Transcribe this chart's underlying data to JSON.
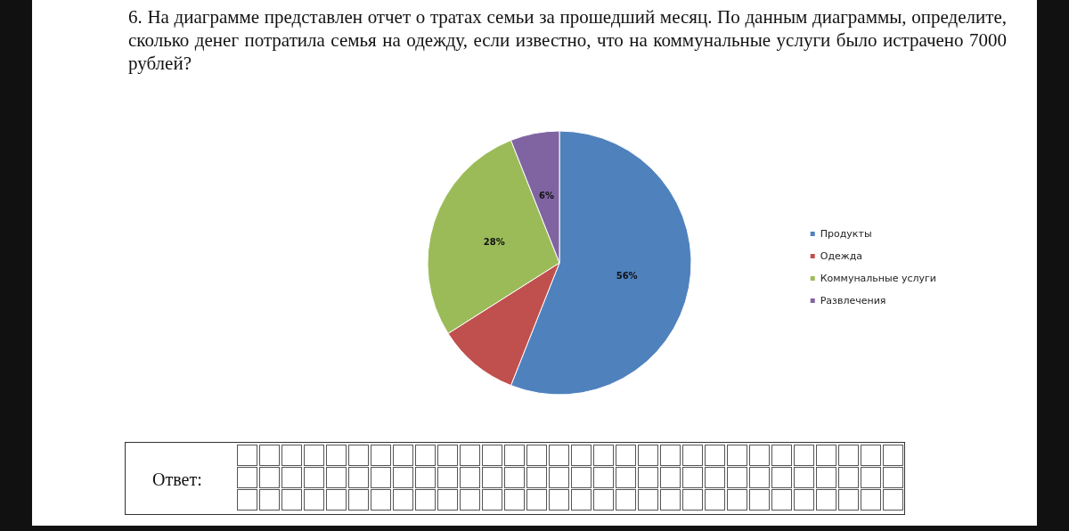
{
  "chart_data": {
    "type": "pie",
    "title": "6. На диаграмме представлен отчет о тратах семьи за прошедший месяц. По данным диаграммы, определите, сколько денег потратила семья на одежду, если известно, что на коммунальные услуги было истрачено 7000 рублей?",
    "categories": [
      "Продукты",
      "Одежда",
      "Коммунальные услуги",
      "Развлечения"
    ],
    "values": [
      56,
      10,
      28,
      6
    ],
    "colors": [
      "#4f81bd",
      "#c0504d",
      "#9bbb59",
      "#8064a2"
    ],
    "value_labels": [
      "56%",
      null,
      "28%",
      "6%"
    ],
    "legend": "right",
    "annotations": [
      "Ответ:"
    ]
  }
}
